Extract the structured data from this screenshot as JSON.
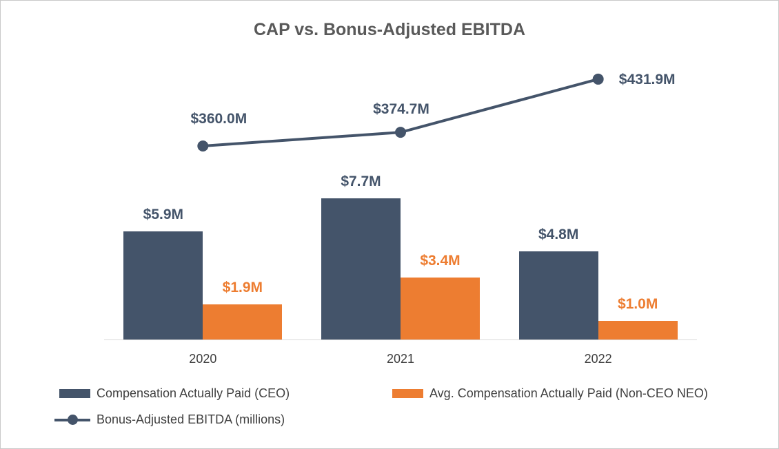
{
  "chart_data": {
    "type": "bar",
    "title": "CAP vs. Bonus-Adjusted EBITDA",
    "categories": [
      "2020",
      "2021",
      "2022"
    ],
    "series": [
      {
        "name": "Compensation Actually Paid (CEO)",
        "type": "bar",
        "color": "#44546A",
        "values": [
          5.9,
          7.7,
          4.8
        ],
        "labels": [
          "$5.9M",
          "$7.7M",
          "$4.8M"
        ]
      },
      {
        "name": "Avg. Compensation Actually Paid (Non-CEO NEO)",
        "type": "bar",
        "color": "#ED7D31",
        "values": [
          1.9,
          3.4,
          1.0
        ],
        "labels": [
          "$1.9M",
          "$3.4M",
          "$1.0M"
        ]
      },
      {
        "name": "Bonus-Adjusted EBITDA (millions)",
        "type": "line",
        "color": "#44546A",
        "values": [
          360.0,
          374.7,
          431.9
        ],
        "labels": [
          "$360.0M",
          "$374.7M",
          "$431.9M"
        ]
      }
    ],
    "axis_color": "#D9D9D9",
    "grid": false,
    "legend_position": "bottom",
    "ylim_bars": [
      0,
      8.5
    ],
    "unit": "millions USD"
  }
}
